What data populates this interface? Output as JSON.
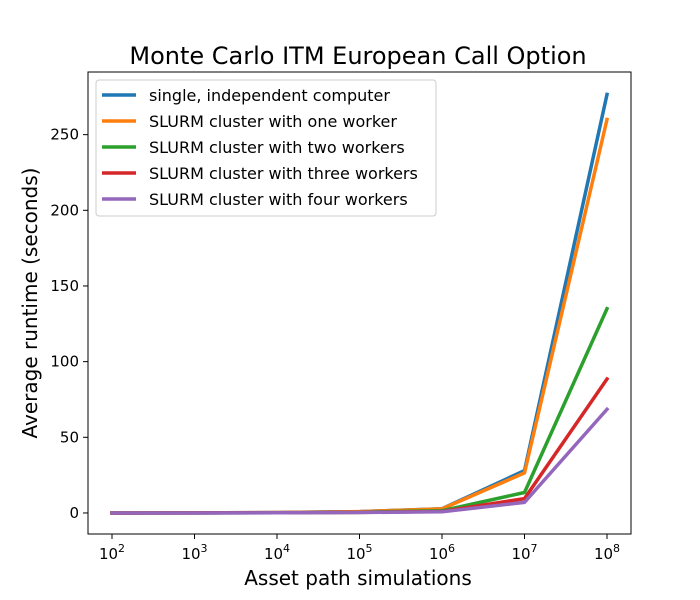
{
  "chart_data": {
    "type": "line",
    "title": "Monte Carlo ITM European Call Option",
    "xlabel": "Asset path simulations",
    "ylabel": "Average runtime (seconds)",
    "xscale": "log",
    "x": [
      100,
      1000,
      10000,
      100000,
      1000000,
      10000000,
      100000000
    ],
    "x_tick_labels": [
      {
        "base": "10",
        "exp": "2"
      },
      {
        "base": "10",
        "exp": "3"
      },
      {
        "base": "10",
        "exp": "4"
      },
      {
        "base": "10",
        "exp": "5"
      },
      {
        "base": "10",
        "exp": "6"
      },
      {
        "base": "10",
        "exp": "7"
      },
      {
        "base": "10",
        "exp": "8"
      }
    ],
    "y_ticks": [
      0,
      50,
      100,
      150,
      200,
      250
    ],
    "ylim": [
      -13.9,
      291.4
    ],
    "legend_position": "upper-left",
    "grid": false,
    "series": [
      {
        "name": "single, independent computer",
        "color": "#1f77b4",
        "values": [
          0.0,
          0.03,
          0.3,
          0.9,
          2.8,
          28.0,
          276.5
        ]
      },
      {
        "name": "SLURM cluster with one worker",
        "color": "#ff7f0e",
        "values": [
          0.0,
          0.03,
          0.3,
          0.9,
          2.7,
          26.5,
          260.0
        ]
      },
      {
        "name": "SLURM cluster with two workers",
        "color": "#2ca02c",
        "values": [
          0.0,
          0.02,
          0.2,
          0.5,
          1.5,
          13.5,
          135.0
        ]
      },
      {
        "name": "SLURM cluster with three workers",
        "color": "#d62728",
        "values": [
          0.0,
          0.02,
          0.15,
          0.4,
          1.0,
          9.5,
          88.5
        ]
      },
      {
        "name": "SLURM cluster with four workers",
        "color": "#9467bd",
        "values": [
          0.0,
          0.01,
          0.1,
          0.3,
          0.8,
          7.0,
          68.5
        ]
      }
    ]
  }
}
